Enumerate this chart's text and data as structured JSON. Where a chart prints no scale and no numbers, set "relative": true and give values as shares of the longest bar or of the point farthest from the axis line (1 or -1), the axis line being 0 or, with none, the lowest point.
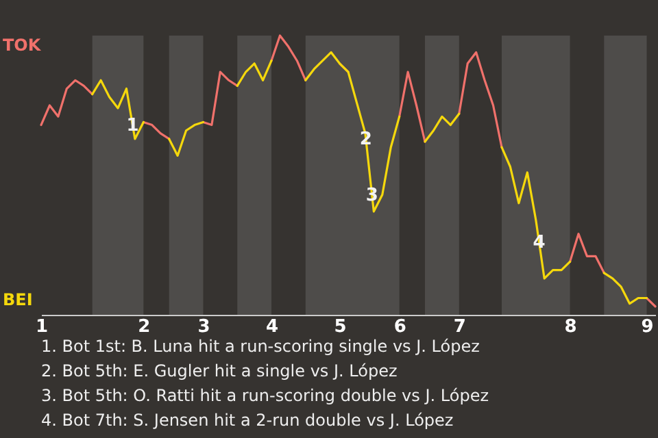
{
  "chart_data": {
    "type": "line",
    "relative": true,
    "categories": [
      "1",
      null,
      null,
      null,
      null,
      null,
      null,
      null,
      null,
      null,
      null,
      null,
      "2",
      null,
      null,
      null,
      null,
      null,
      null,
      "3",
      null,
      null,
      null,
      null,
      null,
      null,
      null,
      "4",
      null,
      null,
      null,
      null,
      null,
      null,
      null,
      "5",
      null,
      null,
      null,
      null,
      null,
      null,
      "6",
      null,
      null,
      null,
      null,
      null,
      null,
      "7",
      null,
      null,
      null,
      null,
      null,
      null,
      null,
      null,
      null,
      null,
      null,
      null,
      "8",
      null,
      null,
      null,
      null,
      null,
      null,
      null,
      null,
      "9",
      null
    ],
    "series": [
      {
        "color": "#f0716b",
        "line_style": "solid",
        "values": [
          0.68,
          0.75,
          0.71,
          0.81,
          0.84,
          0.82,
          0.79,
          null,
          null,
          null,
          null,
          null,
          0.69,
          0.68,
          0.65,
          0.63,
          null,
          null,
          null,
          0.69,
          0.68,
          0.87,
          0.84,
          0.82,
          null,
          null,
          null,
          0.91,
          1,
          0.96,
          0.91,
          0.84,
          null,
          null,
          null,
          0.9,
          0.87,
          null,
          null,
          null,
          null,
          null,
          0.71,
          0.87,
          0.75,
          0.62,
          null,
          null,
          null,
          0.72,
          0.9,
          0.94,
          0.84,
          0.75,
          0.6,
          null,
          null,
          null,
          null,
          null,
          null,
          null,
          0.19,
          0.29,
          0.21,
          0.21,
          0.15,
          null,
          null,
          null,
          null,
          0.06,
          0.03
        ]
      },
      {
        "color": "#f5d80c",
        "line_style": "solid",
        "values": [
          null,
          null,
          null,
          null,
          null,
          null,
          0.79,
          0.84,
          0.78,
          0.74,
          0.81,
          0.63,
          0.69,
          null,
          null,
          0.63,
          0.57,
          0.66,
          0.68,
          0.69,
          null,
          null,
          null,
          0.82,
          0.87,
          0.9,
          0.84,
          0.91,
          null,
          null,
          null,
          0.84,
          0.88,
          0.91,
          0.94,
          0.9,
          0.87,
          0.76,
          0.65,
          0.37,
          0.43,
          0.6,
          0.71,
          null,
          null,
          0.62,
          0.66,
          0.71,
          0.68,
          0.72,
          null,
          null,
          null,
          null,
          0.6,
          0.53,
          0.4,
          0.51,
          0.34,
          0.13,
          0.16,
          0.16,
          0.19,
          null,
          null,
          null,
          0.15,
          0.13,
          0.1,
          0.04,
          0.06,
          0.06,
          null
        ]
      }
    ],
    "annotations": [
      {
        "text": "1",
        "y": 0.68
      },
      {
        "text": "2",
        "y": 0.63
      },
      {
        "text": "3",
        "y": 0.43
      },
      {
        "text": "4",
        "y": 0.26
      },
      "TOK",
      "BEI",
      "1. Bot 1st: B. Luna hit a run-scoring single vs J. López",
      "2. Bot 5th: E. Gugler hit a single vs J. López",
      "3. Bot 5th: O. Ratti hit a run-scoring double vs J. López",
      "4. Bot 7th: S. Jensen hit a 2-run double vs J. López"
    ]
  }
}
